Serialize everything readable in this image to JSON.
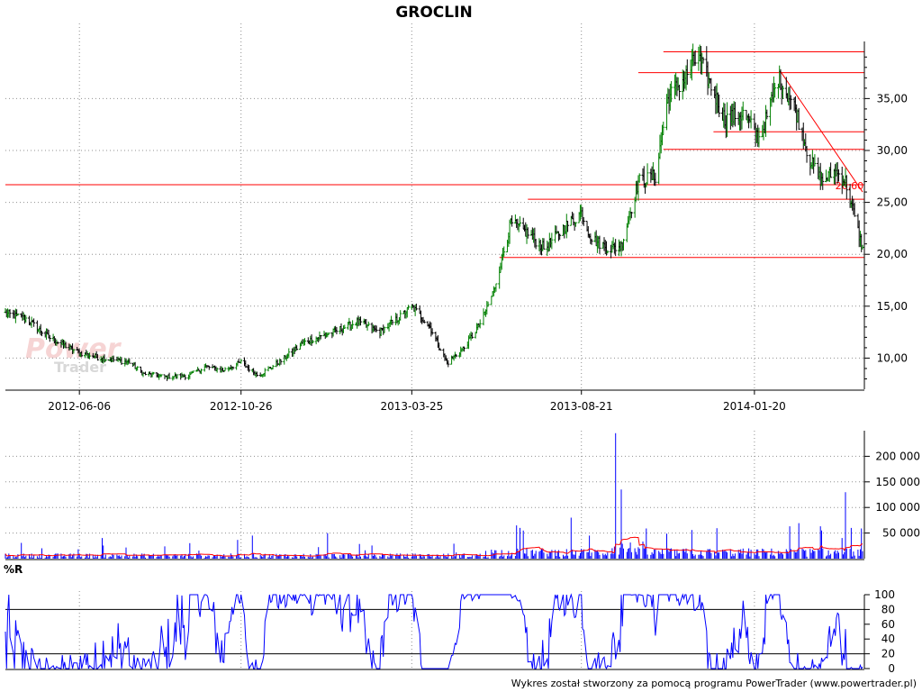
{
  "title": "GROCLIN",
  "footer": "Wykres został stworzony za pomocą programu PowerTrader (www.powertrader.pl)",
  "watermark": {
    "line1": "Power",
    "line2": "Trader"
  },
  "chart_data": [
    {
      "type": "ohlc",
      "name": "price",
      "x_start": "2012-04-02",
      "x_end": "2014-04-25",
      "x_tick_labels": [
        "2012-06-06",
        "2012-10-26",
        "2013-03-25",
        "2013-08-21",
        "2014-01-20"
      ],
      "ylim": [
        7.0,
        40.5
      ],
      "y_tick_labels": [
        "10,00",
        "15,00",
        "20,00",
        "25,00",
        "30,00",
        "35,00"
      ],
      "y_ticks": [
        10,
        15,
        20,
        25,
        30,
        35
      ],
      "grid": "dotted",
      "anchors": [
        [
          "2012-04-02",
          14.3
        ],
        [
          "2012-04-20",
          13.8
        ],
        [
          "2012-05-10",
          12.0
        ],
        [
          "2012-06-06",
          10.5
        ],
        [
          "2012-06-25",
          10.0
        ],
        [
          "2012-07-20",
          9.6
        ],
        [
          "2012-08-01",
          8.5
        ],
        [
          "2012-08-20",
          8.2
        ],
        [
          "2012-09-10",
          8.3
        ],
        [
          "2012-09-25",
          9.2
        ],
        [
          "2012-10-10",
          8.8
        ],
        [
          "2012-10-26",
          9.6
        ],
        [
          "2012-11-10",
          8.3
        ],
        [
          "2012-12-01",
          9.8
        ],
        [
          "2012-12-20",
          11.5
        ],
        [
          "2013-01-15",
          12.5
        ],
        [
          "2013-02-05",
          13.5
        ],
        [
          "2013-02-25",
          12.5
        ],
        [
          "2013-03-15",
          14.0
        ],
        [
          "2013-03-25",
          15.0
        ],
        [
          "2013-04-10",
          13.0
        ],
        [
          "2013-04-25",
          9.5
        ],
        [
          "2013-05-10",
          11.0
        ],
        [
          "2013-05-25",
          13.5
        ],
        [
          "2013-06-05",
          16.5
        ],
        [
          "2013-06-20",
          23.0
        ],
        [
          "2013-07-05",
          22.0
        ],
        [
          "2013-07-20",
          20.5
        ],
        [
          "2013-08-05",
          22.5
        ],
        [
          "2013-08-21",
          24.0
        ],
        [
          "2013-08-30",
          21.5
        ],
        [
          "2013-09-15",
          20.5
        ],
        [
          "2013-09-25",
          20.8
        ],
        [
          "2013-10-10",
          27.0
        ],
        [
          "2013-10-25",
          27.5
        ],
        [
          "2013-11-05",
          35.0
        ],
        [
          "2013-11-20",
          37.0
        ],
        [
          "2013-12-01",
          39.0
        ],
        [
          "2013-12-10",
          37.0
        ],
        [
          "2013-12-25",
          33.0
        ],
        [
          "2014-01-10",
          33.5
        ],
        [
          "2014-01-25",
          31.0
        ],
        [
          "2014-02-10",
          37.0
        ],
        [
          "2014-02-25",
          34.0
        ],
        [
          "2014-03-10",
          29.0
        ],
        [
          "2014-03-20",
          27.0
        ],
        [
          "2014-04-01",
          28.0
        ],
        [
          "2014-04-10",
          27.0
        ],
        [
          "2014-04-25",
          20.5
        ]
      ],
      "horizontal_lines": [
        {
          "y": 39.5,
          "from": "2013-11-01",
          "to": "2014-04-25"
        },
        {
          "y": 37.5,
          "from": "2013-10-10",
          "to": "2014-04-25"
        },
        {
          "y": 31.8,
          "from": "2013-12-15",
          "to": "2014-04-25"
        },
        {
          "y": 30.1,
          "from": "2013-11-01",
          "to": "2014-04-25"
        },
        {
          "y": 26.7,
          "from": "2012-04-02",
          "to": "2014-04-25"
        },
        {
          "y": 25.3,
          "from": "2013-07-05",
          "to": "2014-04-25"
        },
        {
          "y": 19.7,
          "from": "2013-06-10",
          "to": "2014-04-25"
        }
      ],
      "trend_lines": [
        {
          "from": [
            "2014-02-12",
            37.6
          ],
          "to": [
            "2014-04-25",
            26.0
          ]
        }
      ],
      "annotation": {
        "text": "26,60",
        "x": "2014-04-01",
        "y": 26.6
      }
    },
    {
      "type": "bar",
      "name": "volume",
      "ylim": [
        0,
        250000
      ],
      "y_tick_labels": [
        "50 000",
        "100 000",
        "150 000",
        "200 000"
      ],
      "y_ticks": [
        50000,
        100000,
        150000,
        200000
      ],
      "spikes": [
        [
          "2013-09-20",
          245000
        ],
        [
          "2013-09-25",
          135000
        ],
        [
          "2014-04-10",
          130000
        ],
        [
          "2013-06-25",
          65000
        ],
        [
          "2013-06-28",
          60000
        ],
        [
          "2013-07-01",
          55000
        ],
        [
          "2012-10-28",
          50000
        ],
        [
          "2012-11-05",
          45000
        ],
        [
          "2013-01-10",
          50000
        ],
        [
          "2013-08-28",
          45000
        ],
        [
          "2013-10-20",
          50000
        ],
        [
          "2014-02-15",
          48000
        ],
        [
          "2014-03-20",
          55000
        ],
        [
          "2014-04-15",
          60000
        ]
      ],
      "moving_average_color": "#ff0000"
    },
    {
      "type": "line",
      "name": "%R",
      "label": "%R",
      "ylim": [
        0,
        100
      ],
      "y_tick_labels": [
        "0",
        "20",
        "40",
        "60",
        "80",
        "100"
      ],
      "y_ticks": [
        0,
        20,
        40,
        60,
        80,
        100
      ],
      "reference_lines": [
        20,
        80
      ]
    }
  ],
  "colors": {
    "price_up": "#008000",
    "price_down": "#000000",
    "support_line": "#ff0000",
    "volume_bar": "#0000ff",
    "volume_ma": "#ff0000",
    "williams_r": "#0000ff",
    "grid": "#909090"
  }
}
